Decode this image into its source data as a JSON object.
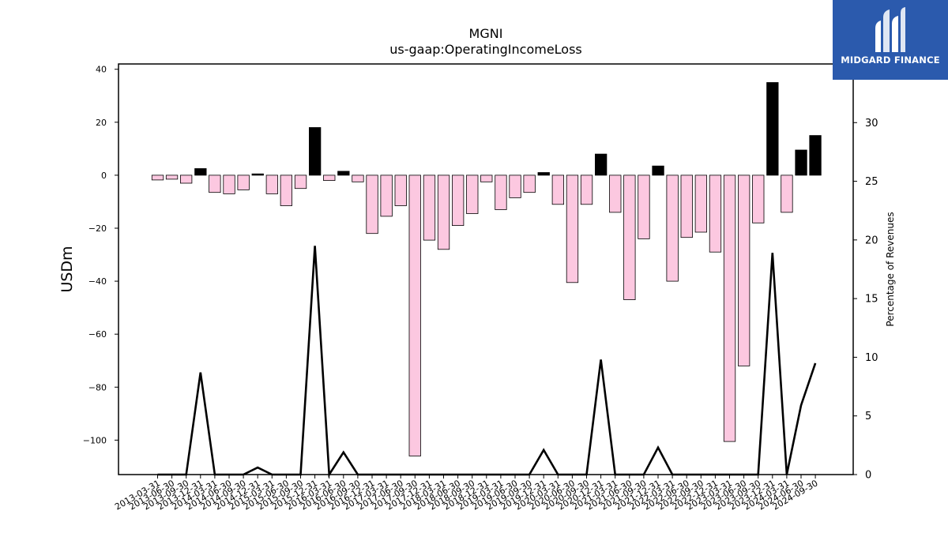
{
  "brand": {
    "name": "MIDGARD FINANCE",
    "logo_icon": "midgard-m-icon",
    "color": "#2b5aad"
  },
  "chart_data": {
    "type": "bar",
    "title": "MGNI",
    "subtitle": "us-gaap:OperatingIncomeLoss",
    "ylabel": "USDm",
    "y2label": "Percentage of Revenues",
    "ylim": [
      -113,
      42
    ],
    "y2lim": [
      0,
      35
    ],
    "yticks": [
      40,
      20,
      0,
      -20,
      -40,
      -60,
      -80,
      -100
    ],
    "y2ticks": [
      0,
      5,
      10,
      15,
      20,
      25,
      30
    ],
    "colors": {
      "negative": "#fcc8e0",
      "positive": "#000000",
      "line": "#000000"
    },
    "categories": [
      "2013-03-31",
      "2013-06-30",
      "2013-09-30",
      "2013-12-31",
      "2014-03-31",
      "2014-06-30",
      "2014-09-30",
      "2014-12-31",
      "2015-03-31",
      "2015-06-30",
      "2015-09-30",
      "2015-12-31",
      "2016-03-31",
      "2016-06-30",
      "2016-09-30",
      "2016-12-31",
      "2017-03-31",
      "2017-06-30",
      "2017-09-30",
      "2017-12-31",
      "2018-03-31",
      "2018-06-30",
      "2018-09-30",
      "2018-12-31",
      "2019-03-31",
      "2019-06-30",
      "2019-09-30",
      "2019-12-31",
      "2020-03-31",
      "2020-06-30",
      "2020-09-30",
      "2020-12-31",
      "2021-03-31",
      "2021-06-30",
      "2021-09-30",
      "2021-12-31",
      "2022-03-31",
      "2022-06-30",
      "2022-09-30",
      "2022-12-31",
      "2023-03-31",
      "2023-06-30",
      "2023-09-30",
      "2023-12-31",
      "2024-03-31",
      "2024-06-30",
      "2024-09-30"
    ],
    "series": [
      {
        "type": "bar",
        "values": [
          -1.8,
          -1.5,
          -3,
          2.5,
          -6.5,
          -7,
          -5.5,
          0.5,
          -7,
          -11.5,
          -5,
          18,
          -2,
          1.5,
          -2.5,
          -22,
          -15.5,
          -11.5,
          -106,
          -24.5,
          -28,
          -19,
          -14.5,
          -2.5,
          -13,
          -8.5,
          -6.5,
          1,
          -11,
          -40.5,
          -11,
          8,
          -14,
          -47,
          -24,
          3.5,
          -40,
          -23.5,
          -21.5,
          -29,
          -100.5,
          -72,
          -18,
          35,
          -14,
          9.5,
          15
        ]
      },
      {
        "type": "line",
        "axis": "right",
        "values": [
          0,
          0,
          0,
          8.7,
          0,
          0,
          0,
          0.6,
          0,
          0,
          0,
          19.5,
          0,
          1.9,
          0,
          0,
          0,
          0,
          0,
          0,
          0,
          0,
          0,
          0,
          0,
          0,
          0,
          2.1,
          0,
          0,
          0,
          9.8,
          0,
          0,
          0,
          2.3,
          0,
          0,
          0,
          0,
          0,
          0,
          0,
          18.9,
          0,
          5.9,
          9.5
        ]
      }
    ]
  }
}
